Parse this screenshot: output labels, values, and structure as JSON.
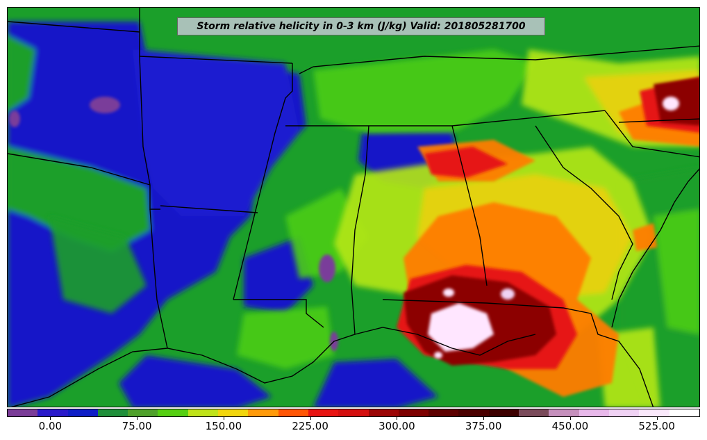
{
  "map": {
    "title": "Storm relative helicity in 0-3 km (J/kg) Valid: 201805281700",
    "field_colors": {
      "background": "#1b9f2a",
      "low_blue": "#1419c8",
      "green_light": "#4ccd18",
      "yellow_green": "#b2e619",
      "yellow": "#f5d70b",
      "orange": "#ff7d05",
      "red": "#e61414",
      "dark_red": "#8c0000",
      "purple": "#7a3e9a",
      "white_pink": "#ffe6ff"
    },
    "boundary_color": "#000000"
  },
  "colorbar": {
    "colors": [
      "#7b3c98",
      "#2a1acb",
      "#0f1ec7",
      "#1f8f3a",
      "#4fa12b",
      "#55cf12",
      "#bfe319",
      "#f2d60d",
      "#ff9a0a",
      "#ff5505",
      "#e81412",
      "#d40f0f",
      "#9b0505",
      "#7d0000",
      "#5d0000",
      "#4a0000",
      "#3d0000",
      "#7a4a5a",
      "#c58fbc",
      "#e8b8ea",
      "#f0d2f4",
      "#fae8fb",
      "#ffffff"
    ],
    "tick_labels": [
      "0.00",
      "75.00",
      "150.00",
      "225.00",
      "300.00",
      "375.00",
      "450.00",
      "525.00"
    ],
    "tick_values": [
      0,
      75,
      150,
      225,
      300,
      375,
      450,
      525
    ],
    "range": [
      -37.5,
      562.5
    ]
  }
}
